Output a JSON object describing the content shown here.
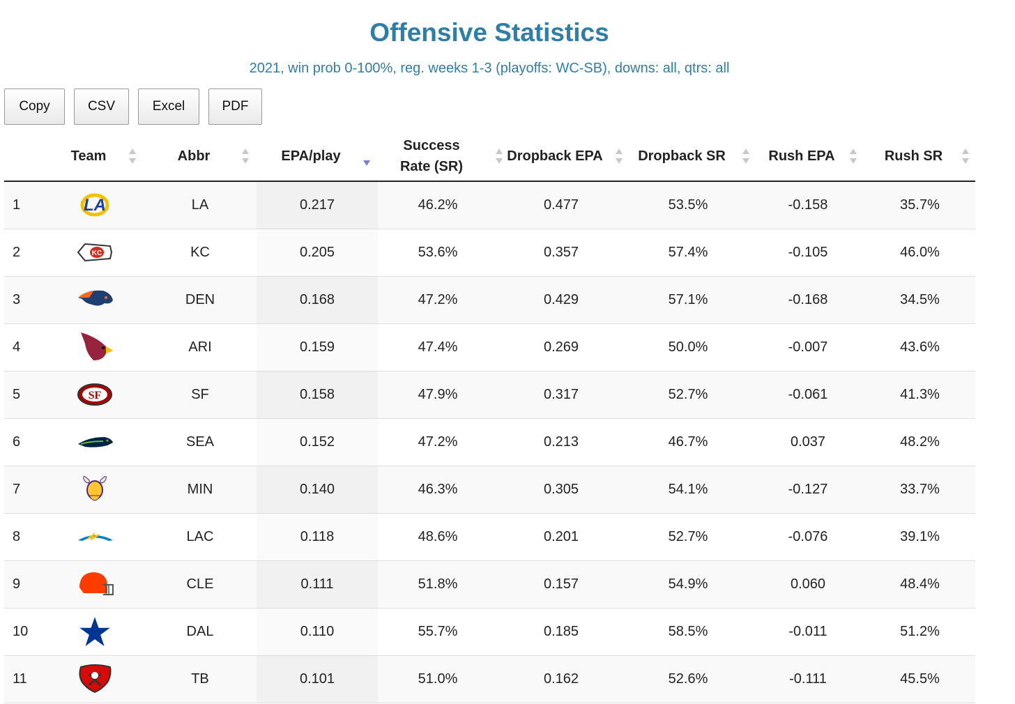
{
  "title": "Offensive Statistics",
  "subtitle": "2021, win prob 0-100%, reg. weeks 1-3 (playoffs: WC-SB), downs: all, qtrs: all",
  "buttons": {
    "copy": "Copy",
    "csv": "CSV",
    "excel": "Excel",
    "pdf": "PDF"
  },
  "columns": {
    "rank": "",
    "team": "Team",
    "abbr": "Abbr",
    "epa": "EPA/play",
    "sr_line1": "Success",
    "sr_line2": "Rate (SR)",
    "dbepa": "Dropback EPA",
    "dbsr": "Dropback SR",
    "rushepa": "Rush EPA",
    "rushsr": "Rush SR"
  },
  "sort": {
    "column": "EPA/play",
    "direction": "descending"
  },
  "rows": [
    {
      "rank": "1",
      "logo": "rams-logo-icon",
      "abbr": "LA",
      "epa": "0.217",
      "sr": "46.2%",
      "dbepa": "0.477",
      "dbsr": "53.5%",
      "rushepa": "-0.158",
      "rushsr": "35.7%"
    },
    {
      "rank": "2",
      "logo": "chiefs-logo-icon",
      "abbr": "KC",
      "epa": "0.205",
      "sr": "53.6%",
      "dbepa": "0.357",
      "dbsr": "57.4%",
      "rushepa": "-0.105",
      "rushsr": "46.0%"
    },
    {
      "rank": "3",
      "logo": "broncos-logo-icon",
      "abbr": "DEN",
      "epa": "0.168",
      "sr": "47.2%",
      "dbepa": "0.429",
      "dbsr": "57.1%",
      "rushepa": "-0.168",
      "rushsr": "34.5%"
    },
    {
      "rank": "4",
      "logo": "cardinals-logo-icon",
      "abbr": "ARI",
      "epa": "0.159",
      "sr": "47.4%",
      "dbepa": "0.269",
      "dbsr": "50.0%",
      "rushepa": "-0.007",
      "rushsr": "43.6%"
    },
    {
      "rank": "5",
      "logo": "49ers-logo-icon",
      "abbr": "SF",
      "epa": "0.158",
      "sr": "47.9%",
      "dbepa": "0.317",
      "dbsr": "52.7%",
      "rushepa": "-0.061",
      "rushsr": "41.3%"
    },
    {
      "rank": "6",
      "logo": "seahawks-logo-icon",
      "abbr": "SEA",
      "epa": "0.152",
      "sr": "47.2%",
      "dbepa": "0.213",
      "dbsr": "46.7%",
      "rushepa": "0.037",
      "rushsr": "48.2%"
    },
    {
      "rank": "7",
      "logo": "vikings-logo-icon",
      "abbr": "MIN",
      "epa": "0.140",
      "sr": "46.3%",
      "dbepa": "0.305",
      "dbsr": "54.1%",
      "rushepa": "-0.127",
      "rushsr": "33.7%"
    },
    {
      "rank": "8",
      "logo": "chargers-logo-icon",
      "abbr": "LAC",
      "epa": "0.118",
      "sr": "48.6%",
      "dbepa": "0.201",
      "dbsr": "52.7%",
      "rushepa": "-0.076",
      "rushsr": "39.1%"
    },
    {
      "rank": "9",
      "logo": "browns-logo-icon",
      "abbr": "CLE",
      "epa": "0.111",
      "sr": "51.8%",
      "dbepa": "0.157",
      "dbsr": "54.9%",
      "rushepa": "0.060",
      "rushsr": "48.4%"
    },
    {
      "rank": "10",
      "logo": "cowboys-logo-icon",
      "abbr": "DAL",
      "epa": "0.110",
      "sr": "55.7%",
      "dbepa": "0.185",
      "dbsr": "58.5%",
      "rushepa": "-0.011",
      "rushsr": "51.2%"
    },
    {
      "rank": "11",
      "logo": "buccaneers-logo-icon",
      "abbr": "TB",
      "epa": "0.101",
      "sr": "51.0%",
      "dbepa": "0.162",
      "dbsr": "52.6%",
      "rushepa": "-0.111",
      "rushsr": "45.5%"
    }
  ],
  "colors": {
    "title": "#2e7ea8",
    "sort_active": "#7b7fd6",
    "sort_inactive": "#c8c8c8"
  }
}
